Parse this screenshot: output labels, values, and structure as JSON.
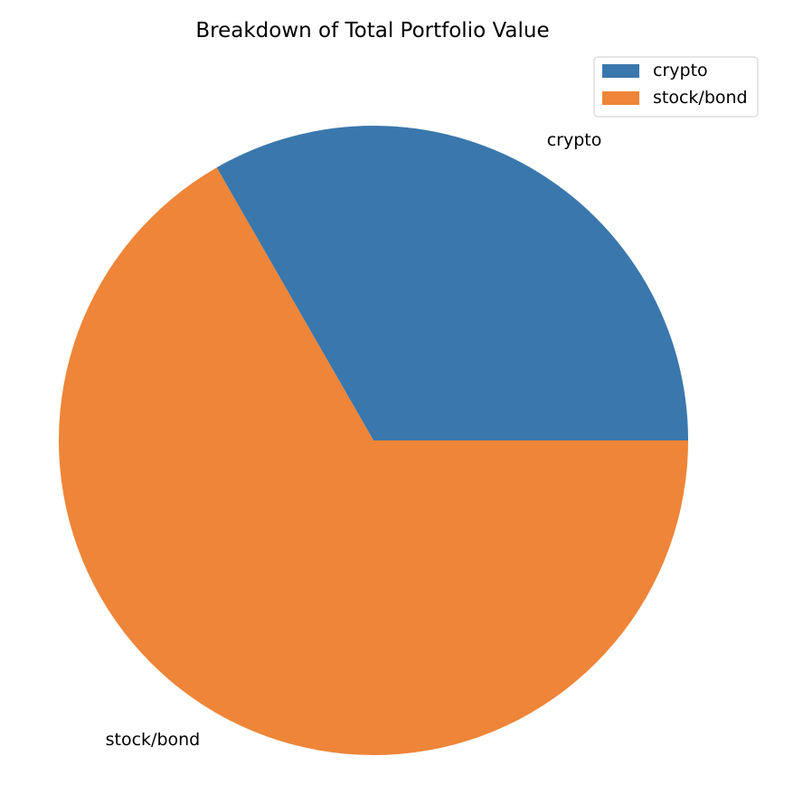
{
  "chart_data": {
    "type": "pie",
    "title": "Breakdown of Total Portfolio Value",
    "slices": [
      {
        "label": "crypto",
        "value": 33.3,
        "color": "#3a77ad"
      },
      {
        "label": "stock/bond",
        "value": 66.7,
        "color": "#ee8538"
      }
    ],
    "start_angle_deg": 0,
    "direction": "counterclockwise",
    "legend": {
      "position": "upper right",
      "entries": [
        "crypto",
        "stock/bond"
      ]
    }
  }
}
